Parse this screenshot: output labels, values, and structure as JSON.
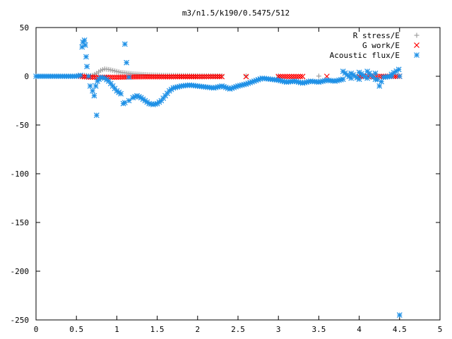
{
  "chart_data": {
    "type": "scatter",
    "title": "m3/n1.5/k190/0.5475/512",
    "xlabel": "",
    "ylabel": "",
    "xlim": [
      0,
      5
    ],
    "ylim": [
      -250,
      50
    ],
    "xticks": [
      0,
      0.5,
      1,
      1.5,
      2,
      2.5,
      3,
      3.5,
      4,
      4.5,
      5
    ],
    "yticks": [
      -250,
      -200,
      -150,
      -100,
      -50,
      0,
      50
    ],
    "xtick_labels": [
      "0",
      "0.5",
      "1",
      "1.5",
      "2",
      "2.5",
      "3",
      "3.5",
      "4",
      "4.5",
      "5"
    ],
    "ytick_labels": [
      "-250",
      "-200",
      "-150",
      "-100",
      "-50",
      "0",
      "50"
    ],
    "grid": false,
    "legend_position": "top-right",
    "series": [
      {
        "name": "R stress/E",
        "color": "#a0a0a0",
        "marker": "plus",
        "points": [
          [
            0.0,
            0
          ],
          [
            0.2,
            0
          ],
          [
            0.4,
            0
          ],
          [
            0.5,
            0
          ],
          [
            0.55,
            0.5
          ],
          [
            0.6,
            1
          ],
          [
            0.65,
            0.5
          ],
          [
            0.7,
            1
          ],
          [
            0.75,
            3
          ],
          [
            0.8,
            6
          ],
          [
            0.85,
            7.5
          ],
          [
            0.9,
            7
          ],
          [
            0.95,
            6
          ],
          [
            1.0,
            5
          ],
          [
            1.05,
            4
          ],
          [
            1.1,
            3.5
          ],
          [
            1.15,
            3
          ],
          [
            1.2,
            2.5
          ],
          [
            1.3,
            2
          ],
          [
            1.4,
            1.5
          ],
          [
            1.5,
            1.2
          ],
          [
            1.6,
            1
          ],
          [
            1.8,
            0.8
          ],
          [
            2.0,
            0.6
          ],
          [
            2.3,
            0.5
          ],
          [
            2.6,
            0.4
          ],
          [
            3.0,
            0.3
          ],
          [
            3.5,
            0.2
          ],
          [
            4.0,
            0.2
          ],
          [
            4.5,
            0.1
          ]
        ]
      },
      {
        "name": "G work/E",
        "color": "#ff0000",
        "marker": "cross",
        "points": [
          [
            0.55,
            0
          ],
          [
            0.6,
            -0.5
          ],
          [
            0.7,
            -1
          ],
          [
            0.8,
            -1
          ],
          [
            0.9,
            -1
          ],
          [
            1.0,
            -1
          ],
          [
            1.1,
            -0.8
          ],
          [
            1.2,
            -0.6
          ],
          [
            1.4,
            -0.5
          ],
          [
            1.6,
            -0.5
          ],
          [
            1.8,
            -0.4
          ],
          [
            2.0,
            -0.4
          ],
          [
            2.3,
            -0.3
          ],
          [
            2.6,
            -0.3
          ],
          [
            3.0,
            -0.2
          ],
          [
            3.3,
            -0.2
          ],
          [
            3.6,
            -0.1
          ],
          [
            4.0,
            -0.1
          ],
          [
            4.3,
            -0.1
          ],
          [
            4.5,
            0
          ]
        ]
      },
      {
        "name": "Acoustic flux/E",
        "color": "#1e90e6",
        "marker": "star",
        "points": [
          [
            0.0,
            0
          ],
          [
            0.1,
            0
          ],
          [
            0.2,
            0
          ],
          [
            0.3,
            0
          ],
          [
            0.4,
            0
          ],
          [
            0.5,
            0
          ],
          [
            0.55,
            1
          ],
          [
            0.57,
            30
          ],
          [
            0.58,
            35
          ],
          [
            0.6,
            37
          ],
          [
            0.61,
            32
          ],
          [
            0.62,
            20
          ],
          [
            0.63,
            10
          ],
          [
            0.65,
            0
          ],
          [
            0.67,
            -10
          ],
          [
            0.7,
            -15
          ],
          [
            0.72,
            -20
          ],
          [
            0.74,
            -10
          ],
          [
            0.76,
            -5
          ],
          [
            0.8,
            -1
          ],
          [
            0.85,
            -2
          ],
          [
            0.9,
            -5
          ],
          [
            0.95,
            -10
          ],
          [
            1.0,
            -15
          ],
          [
            1.05,
            -18
          ],
          [
            1.08,
            -28
          ],
          [
            1.1,
            -27
          ],
          [
            1.15,
            -25
          ],
          [
            1.2,
            -22
          ],
          [
            1.25,
            -20
          ],
          [
            1.3,
            -22
          ],
          [
            1.35,
            -25
          ],
          [
            1.4,
            -28
          ],
          [
            1.45,
            -29
          ],
          [
            1.5,
            -28
          ],
          [
            1.55,
            -25
          ],
          [
            1.6,
            -20
          ],
          [
            1.65,
            -15
          ],
          [
            1.7,
            -12
          ],
          [
            1.8,
            -10
          ],
          [
            1.9,
            -9
          ],
          [
            2.0,
            -10
          ],
          [
            2.1,
            -11
          ],
          [
            2.2,
            -12
          ],
          [
            2.3,
            -10
          ],
          [
            2.4,
            -13
          ],
          [
            2.5,
            -10
          ],
          [
            2.6,
            -8
          ],
          [
            2.7,
            -5
          ],
          [
            2.8,
            -2
          ],
          [
            2.9,
            -3
          ],
          [
            3.0,
            -4
          ],
          [
            3.1,
            -6
          ],
          [
            3.2,
            -5
          ],
          [
            3.3,
            -7
          ],
          [
            3.4,
            -5
          ],
          [
            3.5,
            -6
          ],
          [
            3.6,
            -4
          ],
          [
            3.7,
            -5
          ],
          [
            3.8,
            -3
          ],
          [
            3.9,
            -2
          ],
          [
            4.0,
            -3
          ],
          [
            4.1,
            -2
          ],
          [
            4.2,
            -3
          ],
          [
            4.3,
            -1
          ],
          [
            4.4,
            0
          ],
          [
            4.5,
            0
          ],
          [
            0.75,
            -40
          ],
          [
            1.1,
            33
          ],
          [
            1.12,
            14
          ],
          [
            1.15,
            -1
          ],
          [
            3.8,
            5
          ],
          [
            3.9,
            3
          ],
          [
            4.0,
            4
          ],
          [
            4.1,
            5
          ],
          [
            4.2,
            3
          ],
          [
            4.25,
            -10
          ],
          [
            4.4,
            2
          ],
          [
            4.49,
            7
          ],
          [
            4.5,
            -245
          ]
        ]
      }
    ]
  }
}
